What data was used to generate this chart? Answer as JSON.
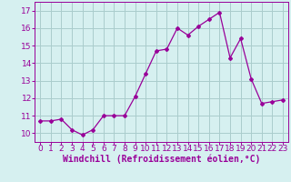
{
  "x": [
    0,
    1,
    2,
    3,
    4,
    5,
    6,
    7,
    8,
    9,
    10,
    11,
    12,
    13,
    14,
    15,
    16,
    17,
    18,
    19,
    20,
    21,
    22,
    23
  ],
  "y": [
    10.7,
    10.7,
    10.8,
    10.2,
    9.9,
    10.2,
    11.0,
    11.0,
    11.0,
    12.1,
    13.4,
    14.7,
    14.8,
    16.0,
    15.6,
    16.1,
    16.5,
    16.9,
    14.3,
    15.4,
    13.1,
    11.7,
    11.8,
    11.9
  ],
  "line_color": "#990099",
  "marker": "D",
  "marker_size": 2.0,
  "bg_color": "#d6f0f0",
  "grid_color": "#aacccc",
  "xlabel": "Windchill (Refroidissement éolien,°C)",
  "xlabel_color": "#990099",
  "ylim": [
    9.5,
    17.5
  ],
  "xlim": [
    -0.5,
    23.5
  ],
  "yticks": [
    10,
    11,
    12,
    13,
    14,
    15,
    16,
    17
  ],
  "xticks": [
    0,
    1,
    2,
    3,
    4,
    5,
    6,
    7,
    8,
    9,
    10,
    11,
    12,
    13,
    14,
    15,
    16,
    17,
    18,
    19,
    20,
    21,
    22,
    23
  ],
  "tick_color": "#990099",
  "tick_label_size": 6.5,
  "xlabel_size": 7.0
}
